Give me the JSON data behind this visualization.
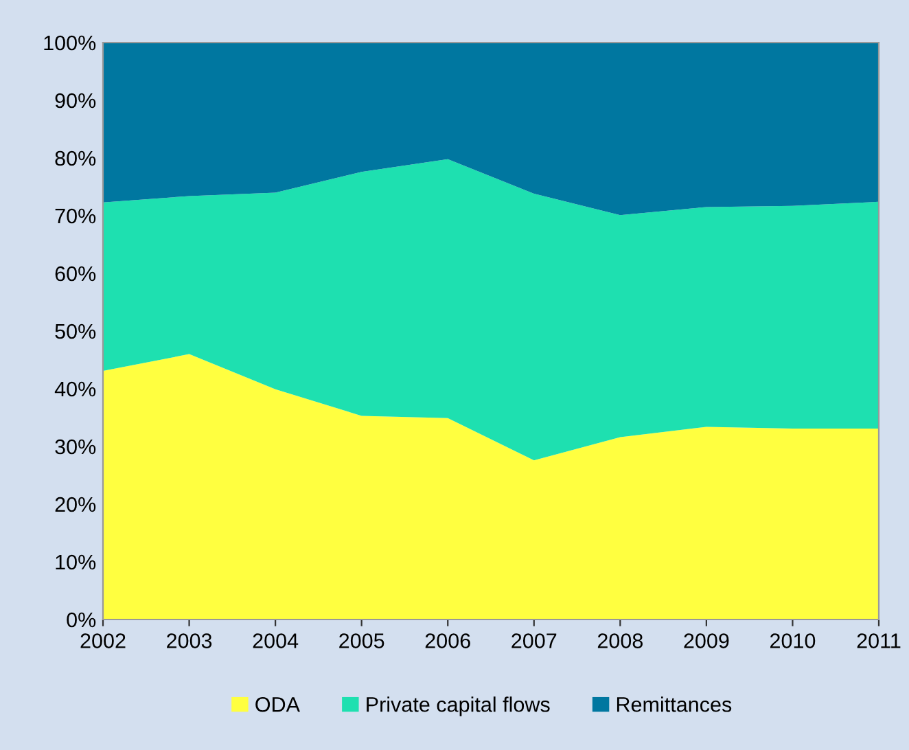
{
  "chart_data": {
    "type": "area",
    "stacked": true,
    "categories": [
      "2002",
      "2003",
      "2004",
      "2005",
      "2006",
      "2007",
      "2008",
      "2009",
      "2010",
      "2011"
    ],
    "series": [
      {
        "name": "ODA",
        "color": "#ffff40",
        "values": [
          43.1,
          46.0,
          39.9,
          35.3,
          34.9,
          27.6,
          31.6,
          33.4,
          33.1,
          33.1
        ]
      },
      {
        "name": "Private capital flows",
        "color": "#1ee0b0",
        "values": [
          29.2,
          27.4,
          34.1,
          42.3,
          44.9,
          46.2,
          38.5,
          38.1,
          38.6,
          39.3
        ]
      },
      {
        "name": "Remittances",
        "color": "#0077a0",
        "values": [
          27.7,
          26.6,
          26.0,
          22.4,
          20.2,
          26.2,
          29.9,
          28.5,
          28.3,
          27.6
        ]
      }
    ],
    "ylim": [
      0,
      100
    ],
    "yticks": [
      {
        "value": 0,
        "label": "0%"
      },
      {
        "value": 10,
        "label": "10%"
      },
      {
        "value": 20,
        "label": "20%"
      },
      {
        "value": 30,
        "label": "30%"
      },
      {
        "value": 40,
        "label": "40%"
      },
      {
        "value": 50,
        "label": "50%"
      },
      {
        "value": 60,
        "label": "60%"
      },
      {
        "value": 70,
        "label": "70%"
      },
      {
        "value": 80,
        "label": "80%"
      },
      {
        "value": 90,
        "label": "90%"
      },
      {
        "value": 100,
        "label": "100%"
      }
    ],
    "grid": false,
    "legend": "bottom"
  }
}
